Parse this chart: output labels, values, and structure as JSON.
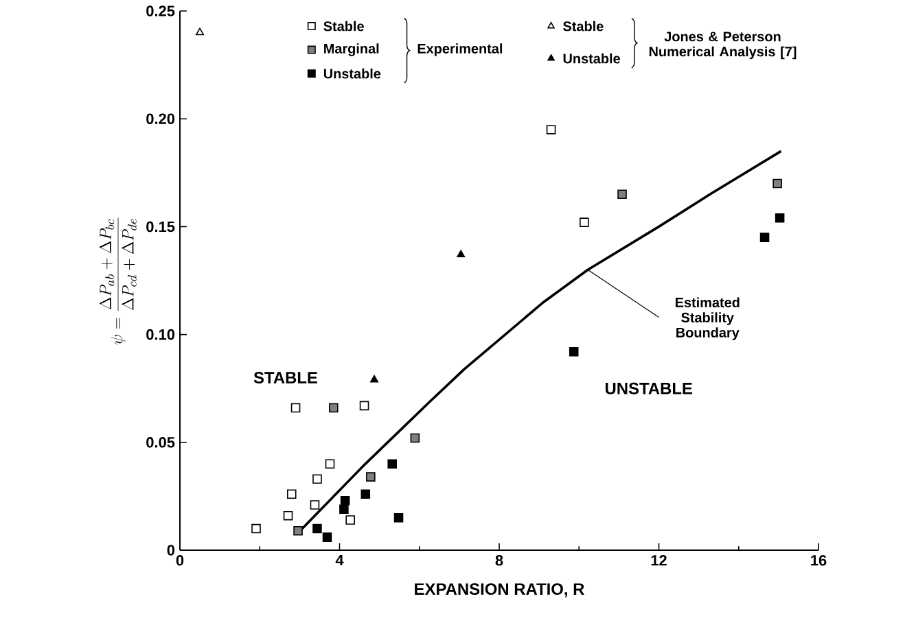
{
  "chart_data": {
    "type": "scatter",
    "xlabel": "EXPANSION RATIO, R",
    "ylabel": "\\psi = \\frac{\\Delta P_{ab}+\\Delta P_{bc}}{\\Delta P_{cd}+\\Delta P_{de}}",
    "xlim": [
      0,
      16
    ],
    "xticks": [
      0,
      4,
      8,
      12,
      16
    ],
    "ylim": [
      0,
      0.25
    ],
    "yticks": [
      0,
      0.05,
      {
        "value": 0.1,
        "label": "0.10"
      },
      0.15,
      {
        "value": 0.2,
        "label": "0.20"
      },
      0.25
    ],
    "legend": "top",
    "series": [
      {
        "name": "Stable",
        "color": "#ffffff",
        "marker": "square",
        "x": [
          2.9,
          4.62,
          3.76,
          3.44,
          2.8,
          3.38,
          2.71,
          1.91,
          4.27,
          9.3,
          10.13
        ],
        "values": [
          0.066,
          0.067,
          0.04,
          0.033,
          0.026,
          0.021,
          0.016,
          0.01,
          0.014,
          0.195,
          0.152
        ]
      },
      {
        "name": "Marginal",
        "color": "#808080",
        "marker": "square",
        "x": [
          3.85,
          5.89,
          4.78,
          2.96,
          11.08,
          14.97
        ],
        "values": [
          0.066,
          0.052,
          0.034,
          0.009,
          0.165,
          0.17
        ]
      },
      {
        "name": "Unstable",
        "color": "#000000",
        "marker": "square",
        "x": [
          5.32,
          4.65,
          4.14,
          4.11,
          3.44,
          3.69,
          5.48,
          9.87,
          14.65,
          15.03
        ],
        "values": [
          0.04,
          0.026,
          0.023,
          0.019,
          0.01,
          0.006,
          0.015,
          0.092,
          0.145,
          0.154
        ]
      },
      {
        "name": "Stable",
        "color": "#ffffff",
        "marker": "triangle",
        "x": [
          0.5
        ],
        "values": [
          0.24
        ]
      },
      {
        "name": "Unstable",
        "color": "#000000",
        "marker": "triangle",
        "x": [
          4.87,
          7.04
        ],
        "values": [
          0.079,
          0.137
        ]
      },
      {
        "type": "line",
        "color": "#000000",
        "marker": "none",
        "line_style": "solid",
        "x": [
          2.96,
          4.59,
          6.27,
          7.13,
          9.11,
          10.22,
          12,
          13.28,
          15.06
        ],
        "values": [
          0.008,
          0.039,
          0.069,
          0.084,
          0.115,
          0.13,
          0.15,
          0.165,
          0.185
        ]
      }
    ],
    "annotations": [
      "STABLE",
      "UNSTABLE",
      {
        "text": "Estimated Stability Boundary",
        "x": 10.22,
        "y": 0.13
      },
      "Experimental",
      "Jones & Peterson Numerical Analysis [7]"
    ]
  }
}
